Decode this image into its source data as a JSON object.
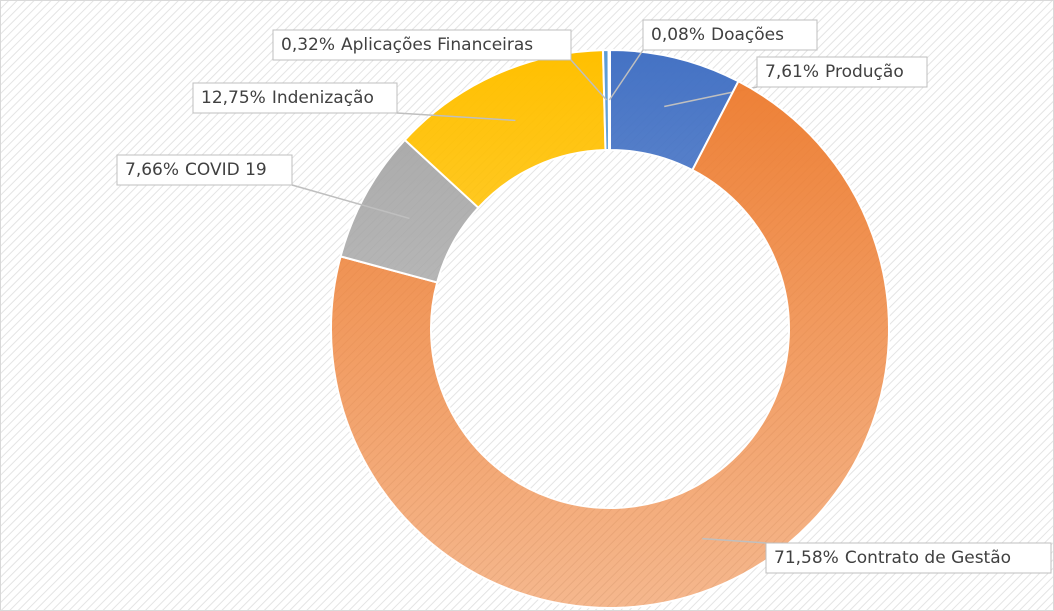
{
  "chart_data": {
    "type": "donut",
    "categories": [
      "Produção",
      "Contrato de Gestão",
      "COVID 19",
      "Indenização",
      "Aplicações Financeiras",
      "Doações"
    ],
    "values": [
      7.61,
      71.58,
      7.66,
      12.75,
      0.32,
      0.08
    ],
    "value_labels": [
      "7,61%",
      "71,58%",
      "7,66%",
      "12,75%",
      "0,32%",
      "0,08%"
    ],
    "colors": [
      "#4472c4",
      "#ed7d31",
      "#a5a5a5",
      "#ffc000",
      "#5b9bd5",
      "#70ad47"
    ]
  }
}
